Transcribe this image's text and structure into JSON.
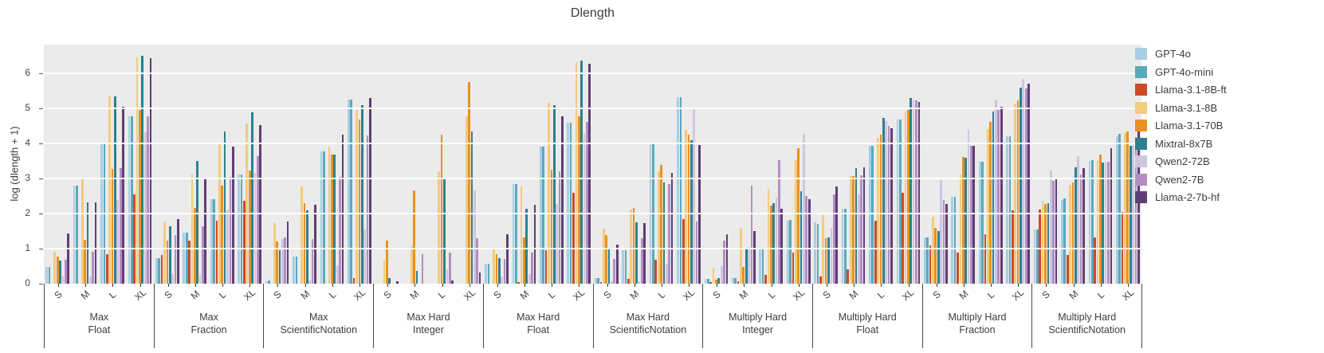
{
  "chart_data": {
    "type": "bar",
    "title": "Dlength",
    "ylabel": "log (dlength + 1)",
    "ylim": [
      0,
      6.83
    ],
    "yticks": [
      0,
      1,
      2,
      3,
      4,
      5,
      6
    ],
    "grid": true,
    "legend_position": "right",
    "sizes": [
      "S",
      "M",
      "L",
      "XL"
    ],
    "series": [
      {
        "name": "GPT-4o",
        "color": "#a8cee3"
      },
      {
        "name": "GPT-4o-mini",
        "color": "#5ba7bc"
      },
      {
        "name": "Llama-3.1-8B-ft",
        "color": "#cc4a28"
      },
      {
        "name": "Llama-3.1-8B",
        "color": "#f3cb7d"
      },
      {
        "name": "Llama-3.1-70B",
        "color": "#e89122"
      },
      {
        "name": "Mixtral-8x7B",
        "color": "#2f7f8f"
      },
      {
        "name": "Qwen2-72B",
        "color": "#d0c5de"
      },
      {
        "name": "Qwen2-7B",
        "color": "#b18fc2"
      },
      {
        "name": "Llama-2-7b-hf",
        "color": "#5f3d76"
      }
    ],
    "groups": [
      {
        "name": "Max Float",
        "label_lines": [
          "Max",
          "Float"
        ],
        "values": {
          "S": [
            0.48,
            0.48,
            0.0,
            0.9,
            0.78,
            0.67,
            0.22,
            0.68,
            1.43
          ],
          "M": [
            2.81,
            2.79,
            0.0,
            3.01,
            1.26,
            2.33,
            0.2,
            0.91,
            2.33
          ],
          "L": [
            4.0,
            4.0,
            0.85,
            5.34,
            3.27,
            5.36,
            2.38,
            3.3,
            5.05
          ],
          "XL": [
            4.78,
            4.78,
            2.55,
            6.47,
            4.97,
            6.52,
            4.33,
            4.78,
            6.45
          ]
        }
      },
      {
        "name": "Max Fraction",
        "label_lines": [
          "Max",
          "Fraction"
        ],
        "values": {
          "S": [
            0.72,
            0.72,
            0.81,
            1.77,
            1.22,
            1.64,
            0.27,
            1.39,
            1.84
          ],
          "M": [
            1.46,
            1.46,
            1.23,
            3.14,
            2.17,
            3.5,
            0.24,
            1.64,
            3.01
          ],
          "L": [
            2.41,
            2.41,
            1.8,
            4.03,
            2.79,
            4.35,
            2.12,
            3.05,
            3.92
          ],
          "XL": [
            3.12,
            3.12,
            2.36,
            4.58,
            3.24,
            4.9,
            3.16,
            3.65,
            4.53
          ]
        }
      },
      {
        "name": "Max ScientificNotation",
        "label_lines": [
          "Max",
          "ScientificNotation"
        ],
        "values": {
          "S": [
            0.07,
            0.1,
            0.0,
            1.73,
            1.2,
            0.95,
            1.27,
            1.33,
            1.78
          ],
          "M": [
            0.78,
            0.78,
            0.0,
            2.78,
            2.31,
            2.09,
            0.1,
            1.27,
            2.26
          ],
          "L": [
            3.77,
            3.77,
            0.0,
            3.92,
            3.7,
            3.7,
            0.53,
            3.04,
            4.26
          ],
          "XL": [
            5.27,
            5.27,
            0.15,
            4.97,
            4.7,
            5.1,
            1.54,
            4.24,
            5.31
          ]
        }
      },
      {
        "name": "Max Hard Integer",
        "label_lines": [
          "Max Hard",
          "Integer"
        ],
        "values": {
          "S": [
            0.0,
            0.0,
            0.0,
            0.66,
            1.22,
            0.15,
            0.0,
            0.0,
            0.08
          ],
          "M": [
            0.0,
            0.0,
            0.0,
            1.07,
            2.66,
            0.36,
            0.0,
            0.85,
            0.0
          ],
          "L": [
            0.0,
            0.0,
            0.0,
            3.22,
            4.25,
            3.02,
            0.4,
            0.88,
            0.1
          ],
          "XL": [
            0.0,
            0.0,
            0.0,
            4.77,
            5.76,
            4.34,
            2.66,
            1.29,
            0.32
          ]
        }
      },
      {
        "name": "Max Hard Float",
        "label_lines": [
          "Max Hard",
          "Float"
        ],
        "values": {
          "S": [
            0.57,
            0.57,
            0.0,
            0.97,
            0.84,
            0.72,
            0.2,
            0.71,
            1.41
          ],
          "M": [
            2.84,
            2.84,
            0.05,
            2.78,
            1.32,
            2.15,
            0.28,
            0.88,
            2.26
          ],
          "L": [
            3.92,
            3.92,
            0.95,
            5.17,
            3.25,
            5.11,
            2.28,
            3.22,
            4.77
          ],
          "XL": [
            4.6,
            4.6,
            2.59,
            6.32,
            4.79,
            6.38,
            4.3,
            4.62,
            6.29
          ]
        }
      },
      {
        "name": "Max Hard ScientificNotation",
        "label_lines": [
          "Max Hard",
          "ScientificNotation"
        ],
        "values": {
          "S": [
            0.15,
            0.15,
            0.05,
            1.56,
            1.39,
            0.97,
            0.08,
            0.71,
            1.12
          ],
          "M": [
            0.95,
            0.95,
            0.13,
            2.11,
            2.17,
            1.75,
            0.08,
            1.29,
            1.73
          ],
          "L": [
            4.0,
            4.01,
            0.68,
            3.2,
            3.4,
            2.89,
            0.57,
            2.85,
            3.17
          ],
          "XL": [
            5.33,
            5.33,
            1.85,
            4.39,
            4.26,
            4.09,
            5.02,
            1.77,
            3.96
          ]
        }
      },
      {
        "name": "Multiply Hard Integer",
        "label_lines": [
          "Multiply Hard",
          "Integer"
        ],
        "values": {
          "S": [
            0.13,
            0.13,
            0.04,
            0.46,
            0.11,
            0.15,
            0.51,
            1.22,
            1.42
          ],
          "M": [
            0.17,
            0.17,
            0.08,
            1.6,
            0.48,
            0.97,
            1.04,
            2.79,
            1.5
          ],
          "L": [
            0.97,
            1.01,
            0.25,
            2.72,
            2.23,
            2.31,
            2.46,
            3.52,
            2.15
          ],
          "XL": [
            1.8,
            1.83,
            0.89,
            3.52,
            3.86,
            2.64,
            4.28,
            2.51,
            2.41
          ]
        }
      },
      {
        "name": "Multiply Hard Float",
        "label_lines": [
          "Multiply Hard",
          "Float"
        ],
        "values": {
          "S": [
            1.75,
            1.71,
            0.21,
            1.96,
            1.29,
            1.33,
            1.6,
            2.56,
            2.78
          ],
          "M": [
            2.13,
            2.13,
            0.4,
            3.07,
            3.07,
            3.31,
            2.55,
            3.1,
            3.33
          ],
          "L": [
            3.93,
            3.93,
            1.8,
            4.16,
            4.26,
            4.74,
            4.65,
            4.5,
            4.43
          ],
          "XL": [
            4.7,
            4.7,
            2.59,
            4.92,
            4.97,
            5.3,
            5.25,
            5.23,
            5.2
          ]
        }
      },
      {
        "name": "Multiply Hard Fraction",
        "label_lines": [
          "Multiply Hard",
          "Fraction"
        ],
        "values": {
          "S": [
            1.33,
            1.33,
            1.1,
            1.92,
            1.6,
            1.5,
            2.97,
            2.4,
            2.27
          ],
          "M": [
            2.49,
            2.49,
            0.88,
            3.12,
            3.63,
            3.6,
            4.39,
            3.93,
            3.93
          ],
          "L": [
            3.48,
            3.48,
            1.41,
            4.41,
            4.62,
            4.92,
            5.25,
            4.97,
            5.06
          ],
          "XL": [
            4.21,
            4.21,
            2.09,
            5.14,
            5.23,
            5.61,
            5.84,
            5.57,
            5.71
          ]
        }
      },
      {
        "name": "Multiply Hard ScientificNotation",
        "label_lines": [
          "Multiply Hard",
          "ScientificNotation"
        ],
        "values": {
          "S": [
            1.54,
            1.54,
            2.11,
            2.36,
            2.28,
            2.31,
            3.23,
            2.93,
            3.01
          ],
          "M": [
            2.4,
            2.44,
            0.81,
            2.82,
            2.89,
            3.33,
            3.65,
            3.12,
            3.31
          ],
          "L": [
            3.5,
            3.52,
            1.32,
            3.52,
            3.68,
            3.45,
            3.46,
            3.48,
            3.88
          ],
          "XL": [
            4.21,
            4.28,
            2.05,
            4.3,
            4.35,
            3.95,
            3.95,
            4.2,
            4.5
          ]
        }
      }
    ]
  }
}
